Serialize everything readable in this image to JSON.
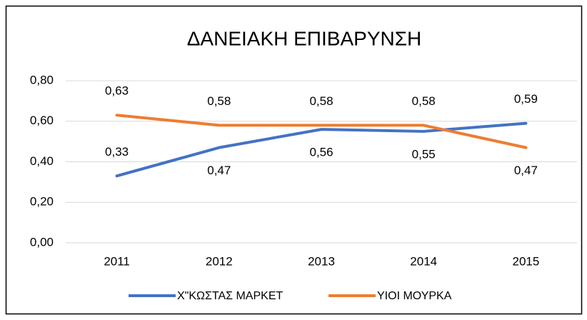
{
  "chart_data": {
    "type": "line",
    "title": "ΔΑΝΕΙΑΚΗ ΕΠΙΒΑΡΥΝΣΗ",
    "categories": [
      "2011",
      "2012",
      "2013",
      "2014",
      "2015"
    ],
    "series": [
      {
        "name": "Χ\"ΚΩΣΤΑΣ ΜΑΡΚΕΤ",
        "color": "#4472c4",
        "values": [
          0.33,
          0.47,
          0.56,
          0.55,
          0.59
        ],
        "value_labels": [
          "0,33",
          "0,47",
          "0,56",
          "0,55",
          "0,59"
        ]
      },
      {
        "name": "ΥΙΟΙ ΜΟΥΡΚΑ",
        "color": "#ed7d31",
        "values": [
          0.63,
          0.58,
          0.58,
          0.58,
          0.47
        ],
        "value_labels": [
          "0,63",
          "0,58",
          "0,58",
          "0,58",
          "0,47"
        ]
      }
    ],
    "ylim": [
      0,
      0.8
    ],
    "yticks": [
      {
        "value": 0,
        "label": "0,00"
      },
      {
        "value": 0.2,
        "label": "0,20"
      },
      {
        "value": 0.4,
        "label": "0,40"
      },
      {
        "value": 0.6,
        "label": "0,60"
      },
      {
        "value": 0.8,
        "label": "0,80"
      }
    ],
    "grid": true,
    "legend": "bottom"
  }
}
